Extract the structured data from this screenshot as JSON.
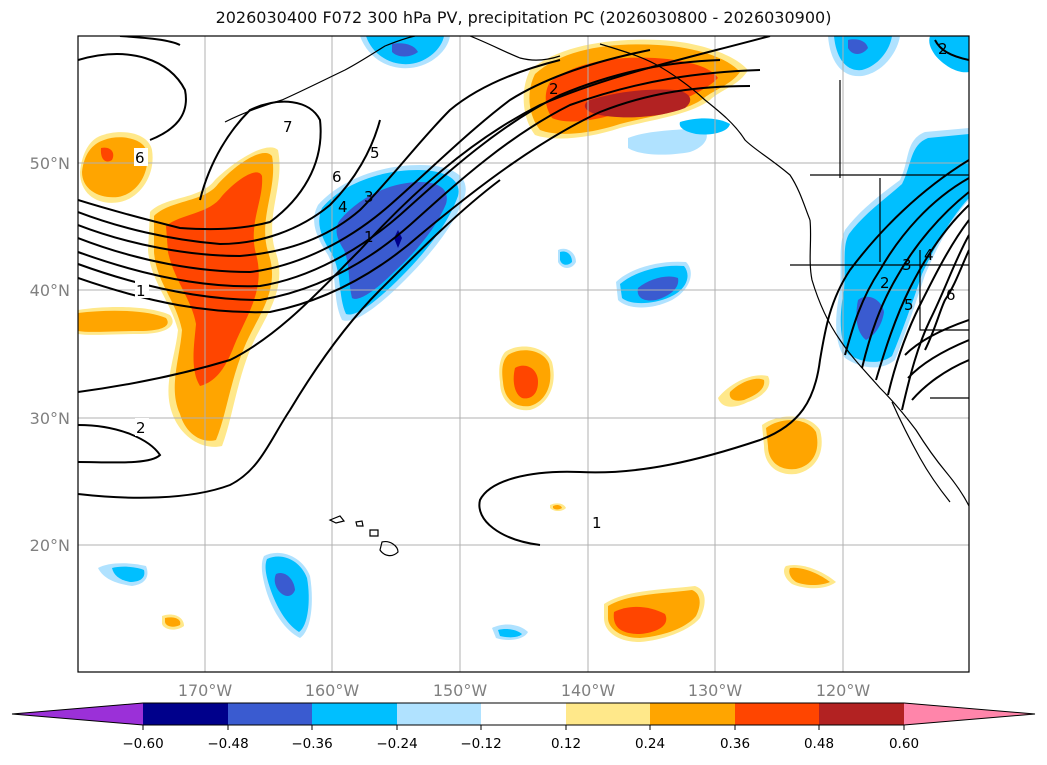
{
  "title": "2026030400 F072 300 hPa PV, precipitation PC (2026030800 - 2026030900)",
  "latitude_labels": [
    "50°N",
    "40°N",
    "30°N",
    "20°N"
  ],
  "longitude_labels": [
    "170°W",
    "160°W",
    "150°W",
    "140°W",
    "130°W",
    "120°W"
  ],
  "pv_contour_labels": [
    "6",
    "1",
    "2",
    "7",
    "6",
    "5",
    "4",
    "3",
    "1",
    "2",
    "1",
    "2",
    "3",
    "4",
    "5",
    "6",
    "2"
  ],
  "colorbar": {
    "ticks": [
      "−0.60",
      "−0.48",
      "−0.36",
      "−0.24",
      "−0.12",
      "0.12",
      "0.24",
      "0.36",
      "0.48",
      "0.60"
    ],
    "colors": [
      "#9b30d8",
      "#00008b",
      "#3a5bd0",
      "#00bfff",
      "#b0e2ff",
      "#ffffff",
      "#ffe88a",
      "#ffa500",
      "#ff4500",
      "#b22222",
      "#ff85aa"
    ]
  },
  "colors": {
    "pos_light": "#ffe88a",
    "pos_mid": "#ffa500",
    "pos_strong": "#ff4500",
    "pos_max": "#b22222",
    "neg_light": "#b0e2ff",
    "neg_mid": "#00bfff",
    "neg_strong": "#3a5bd0",
    "neg_max": "#00008b"
  }
}
